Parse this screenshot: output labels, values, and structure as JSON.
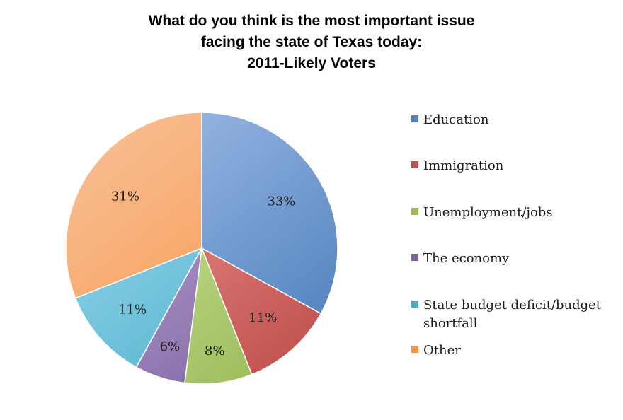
{
  "chart_data": {
    "type": "pie",
    "title_lines": [
      "What do you think is the most important issue",
      "facing the state of Texas today:",
      "2011-Likely Voters"
    ],
    "categories": [
      "Education",
      "Immigration",
      "Unemployment/jobs",
      "The economy",
      "State budget deficit/budget shortfall",
      "Other"
    ],
    "legend_lines": [
      [
        "Education"
      ],
      [
        "Immigration"
      ],
      [
        "Unemployment/jobs"
      ],
      [
        "The economy"
      ],
      [
        "State budget deficit/budget",
        "shortfall"
      ],
      [
        "Other"
      ]
    ],
    "values": [
      33,
      11,
      8,
      6,
      11,
      31
    ],
    "data_labels": [
      "33%",
      "11%",
      "8%",
      "6%",
      "11%",
      "31%"
    ],
    "colors": [
      "#4f81bd",
      "#c0504d",
      "#9bbb59",
      "#8064a2",
      "#4bacc6",
      "#f79646"
    ],
    "light_colors": [
      "#a7c2ec",
      "#f4a2a0",
      "#d6eca7",
      "#c4b3dd",
      "#a4e1f6",
      "#f9c19a"
    ],
    "legend_position": "right"
  }
}
